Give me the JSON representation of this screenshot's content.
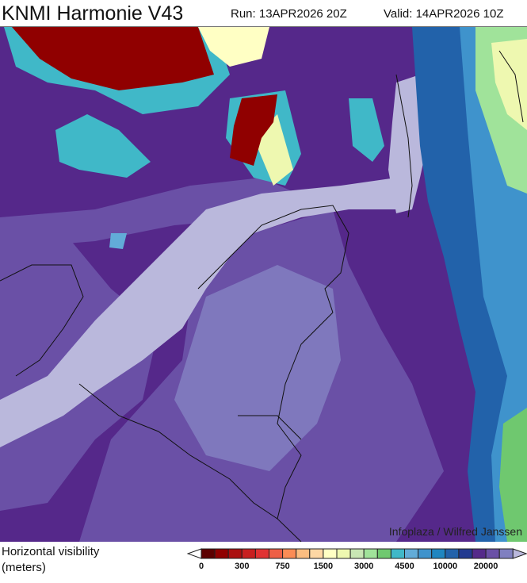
{
  "header": {
    "title": "KNMI Harmonie V43",
    "run": "Run: 13APR2026 20Z",
    "valid": "Valid: 14APR2026 10Z"
  },
  "map": {
    "credit": "Infoplaza / Wilfred Janssen",
    "colors": {
      "base": "#55288a",
      "mid": "#6a50a6",
      "light": "#7f78bd",
      "lavender": "#bab8dc",
      "red": "#9a0000",
      "cyan": "#3fb2c8",
      "blue": "#2a6fb5"
    }
  },
  "legend": {
    "label_line1": "Horizontal visibility",
    "label_line2": "(meters)",
    "colors": [
      "#5c0000",
      "#900000",
      "#ab0f0f",
      "#c82020",
      "#e03333",
      "#ee5f45",
      "#fb8c55",
      "#fcbd80",
      "#fdd7a4",
      "#ffffc4",
      "#eef8b0",
      "#c8e6b4",
      "#a0e39a",
      "#6fc86f",
      "#40b8c8",
      "#62acd8",
      "#3f93cc",
      "#1f86c0",
      "#2262aa",
      "#223a90",
      "#552a8a",
      "#6a50a6",
      "#8080c0"
    ],
    "under_color": "#ffffff",
    "over_color": "#bab8dc",
    "ticks": [
      "0",
      "300",
      "750",
      "1500",
      "3000",
      "4500",
      "10000",
      "20000"
    ]
  }
}
